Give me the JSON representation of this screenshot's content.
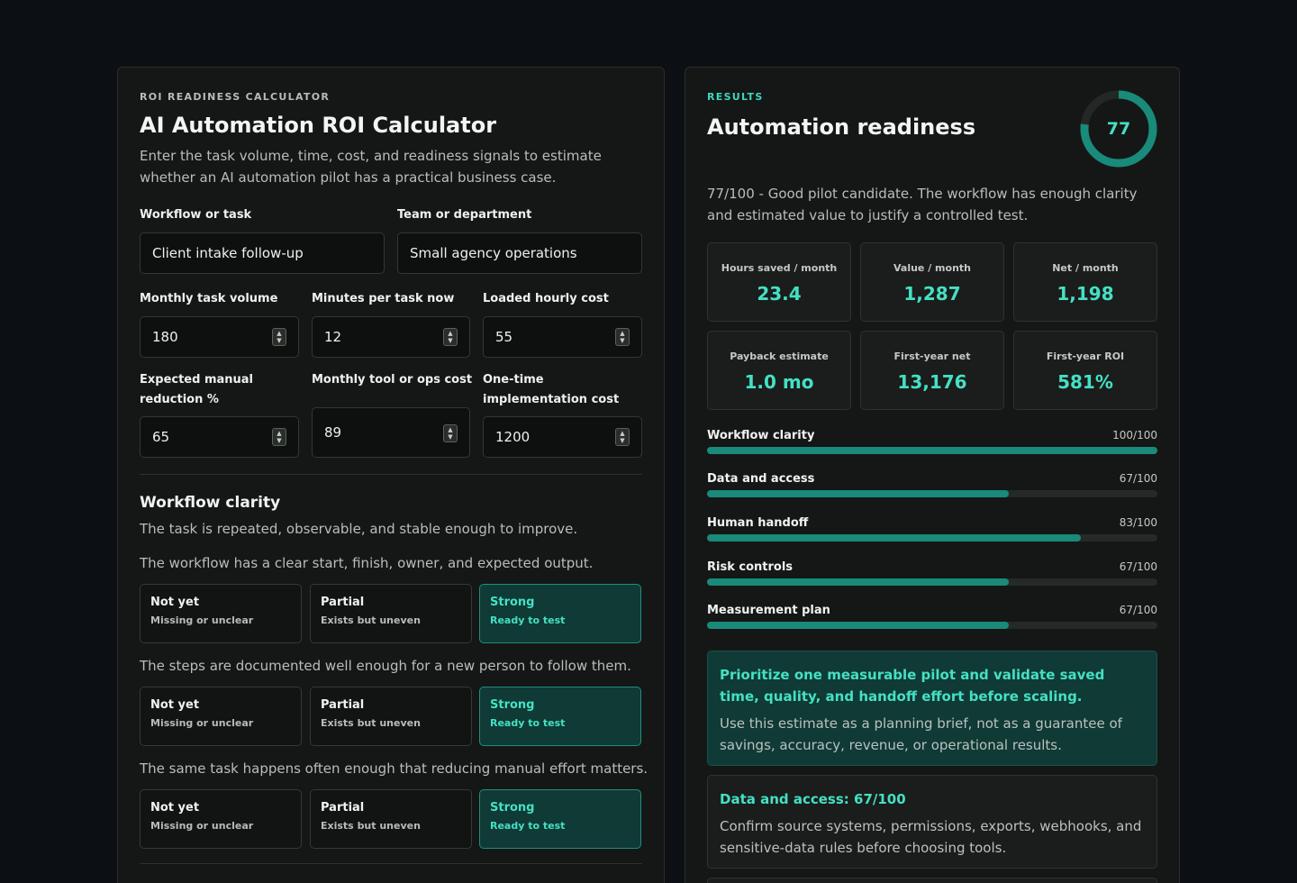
{
  "calculator": {
    "eyebrow": "ROI READINESS CALCULATOR",
    "title": "AI Automation ROI Calculator",
    "description": "Enter the task volume, time, cost, and readiness signals to estimate whether an AI automation pilot has a practical business case.",
    "fields": {
      "workflow": {
        "label": "Workflow or task",
        "value": "Client intake follow-up"
      },
      "team": {
        "label": "Team or department",
        "value": "Small agency operations"
      },
      "volume": {
        "label": "Monthly task volume",
        "value": "180"
      },
      "minutes": {
        "label": "Minutes per task now",
        "value": "12"
      },
      "hourly": {
        "label": "Loaded hourly cost",
        "value": "55"
      },
      "reduction": {
        "label": "Expected manual reduction %",
        "value": "65"
      },
      "toolcost": {
        "label": "Monthly tool or ops cost",
        "value": "89"
      },
      "onetime": {
        "label": "One-time implementation cost",
        "value": "1200"
      }
    },
    "section": {
      "title": "Workflow clarity",
      "description": "The task is repeated, observable, and stable enough to improve.",
      "questions": [
        {
          "text": "The workflow has a clear start, finish, owner, and expected output.",
          "selected": "strong"
        },
        {
          "text": "The steps are documented well enough for a new person to follow them.",
          "selected": "strong"
        },
        {
          "text": "The same task happens often enough that reducing manual effort matters.",
          "selected": "strong"
        }
      ],
      "options": {
        "not_yet": {
          "title": "Not yet",
          "sub": "Missing or unclear"
        },
        "partial": {
          "title": "Partial",
          "sub": "Exists but uneven"
        },
        "strong": {
          "title": "Strong",
          "sub": "Ready to test"
        }
      }
    }
  },
  "results": {
    "eyebrow": "RESULTS",
    "title": "Automation readiness",
    "score": 77,
    "score_display": "77",
    "summary": "77/100 - Good pilot candidate. The workflow has enough clarity and estimated value to justify a controlled test.",
    "metrics": [
      {
        "label": "Hours saved / month",
        "value": "23.4"
      },
      {
        "label": "Value / month",
        "value": "1,287"
      },
      {
        "label": "Net / month",
        "value": "1,198"
      },
      {
        "label": "Payback estimate",
        "value": "1.0 mo"
      },
      {
        "label": "First-year net",
        "value": "13,176"
      },
      {
        "label": "First-year ROI",
        "value": "581%"
      }
    ],
    "scores": [
      {
        "label": "Workflow clarity",
        "display": "100/100",
        "value": 100
      },
      {
        "label": "Data and access",
        "display": "67/100",
        "value": 67
      },
      {
        "label": "Human handoff",
        "display": "83/100",
        "value": 83
      },
      {
        "label": "Risk controls",
        "display": "67/100",
        "value": 67
      },
      {
        "label": "Measurement plan",
        "display": "67/100",
        "value": 67
      }
    ],
    "recommendation": {
      "title": "Prioritize one measurable pilot and validate saved time, quality, and handoff effort before scaling.",
      "body": "Use this estimate as a planning brief, not as a guarantee of savings, accuracy, revenue, or operational results."
    },
    "gap": {
      "title": "Data and access: 67/100",
      "body": "Confirm source systems, permissions, exports, webhooks, and sensitive-data rules before choosing tools."
    }
  },
  "colors": {
    "accent": "#45e0c4",
    "accent_dark": "#1a8a7a",
    "background": "#0c0f13"
  }
}
